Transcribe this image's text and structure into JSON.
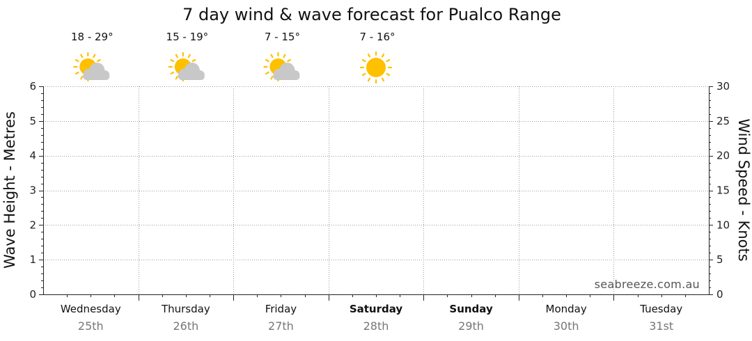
{
  "chart_data": {
    "type": "line",
    "title": "7 day wind & wave forecast for Pualco Range",
    "ylabel_left": "Wave Height - Metres",
    "ylabel_right": "Wind Speed - Knots",
    "ylim_left": [
      0,
      6
    ],
    "ylim_right": [
      0,
      30
    ],
    "yticks_left": [
      "0",
      "1",
      "2",
      "3",
      "4",
      "5",
      "6"
    ],
    "yticks_right": [
      "0",
      "5",
      "10",
      "15",
      "20",
      "25",
      "30"
    ],
    "grid": true,
    "days": [
      {
        "day": "Wednesday",
        "date": "25th",
        "bold": false,
        "temp": "18 - 29°",
        "weather_icon": "sun-cloud-icon"
      },
      {
        "day": "Thursday",
        "date": "26th",
        "bold": false,
        "temp": "15 - 19°",
        "weather_icon": "sun-cloud-icon"
      },
      {
        "day": "Friday",
        "date": "27th",
        "bold": false,
        "temp": "7 - 15°",
        "weather_icon": "sun-cloud-icon"
      },
      {
        "day": "Saturday",
        "date": "28th",
        "bold": true,
        "temp": "7 - 16°",
        "weather_icon": "sun-icon"
      },
      {
        "day": "Sunday",
        "date": "29th",
        "bold": true,
        "temp": "",
        "weather_icon": ""
      },
      {
        "day": "Monday",
        "date": "30th",
        "bold": false,
        "temp": "",
        "weather_icon": ""
      },
      {
        "day": "Tuesday",
        "date": "31st",
        "bold": false,
        "temp": "",
        "weather_icon": ""
      }
    ],
    "series": []
  },
  "credit": "seabreeze.com.au",
  "colors": {
    "sun": "#FFC000",
    "sun_ray": "#FFC000",
    "cloud": "#C8C8C8",
    "grid": "#9a9a9a",
    "axis": "#222222"
  }
}
